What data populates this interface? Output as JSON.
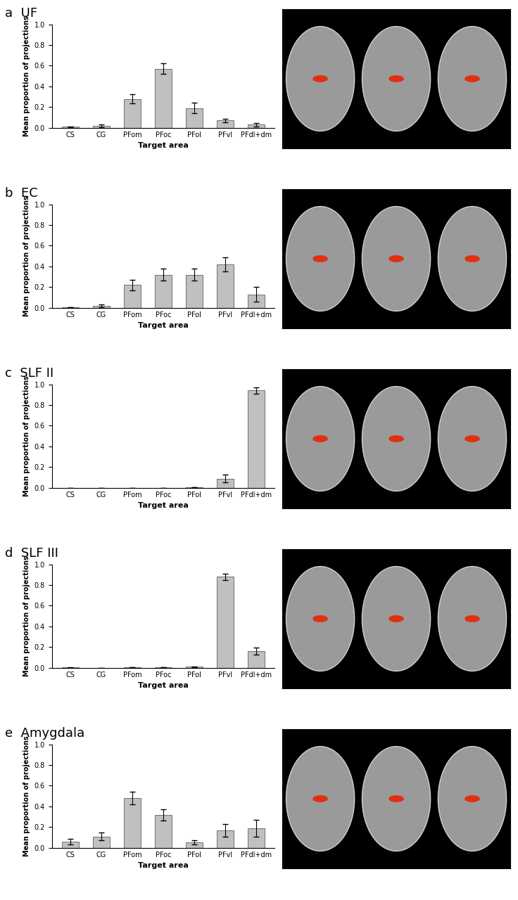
{
  "chart_data": [
    {
      "type": "bar",
      "title": "a  UF",
      "categories": [
        "CS",
        "CG",
        "PFom",
        "PFoc",
        "PFol",
        "PFvl",
        "PFdl+dm"
      ],
      "values": [
        0.01,
        0.02,
        0.28,
        0.57,
        0.19,
        0.07,
        0.03
      ],
      "errors": [
        0.005,
        0.015,
        0.045,
        0.05,
        0.05,
        0.02,
        0.015
      ],
      "x_label": "Target area",
      "y_label": "Mean proportion of projections",
      "color": "#c0c0c0",
      "ylim": [
        0.0,
        1.0
      ],
      "yticks": [
        0.0,
        0.2,
        0.4,
        0.6,
        0.8,
        1.0
      ]
    },
    {
      "type": "bar",
      "title": "b  EC",
      "categories": [
        "CS",
        "CG",
        "PFom",
        "PFoc",
        "PFol",
        "PFvl",
        "PFdl+dm"
      ],
      "values": [
        0.005,
        0.02,
        0.22,
        0.32,
        0.32,
        0.42,
        0.13
      ],
      "errors": [
        0.003,
        0.015,
        0.05,
        0.06,
        0.06,
        0.07,
        0.07
      ],
      "x_label": "Target area",
      "y_label": "Mean proportion of projections",
      "color": "#c0c0c0",
      "ylim": [
        0.0,
        1.0
      ],
      "yticks": [
        0.0,
        0.2,
        0.4,
        0.6,
        0.8,
        1.0
      ]
    },
    {
      "type": "bar",
      "title": "c  SLF II",
      "categories": [
        "CS",
        "CG",
        "PFom",
        "PFoc",
        "PFol",
        "PFvl",
        "PFdl+dm"
      ],
      "values": [
        0.0,
        0.0,
        0.0,
        0.0,
        0.005,
        0.09,
        0.94
      ],
      "errors": [
        0.0,
        0.0,
        0.0,
        0.0,
        0.003,
        0.035,
        0.03
      ],
      "x_label": "Target area",
      "y_label": "Mean proportion of projections",
      "color": "#c0c0c0",
      "ylim": [
        0.0,
        1.0
      ],
      "yticks": [
        0.0,
        0.2,
        0.4,
        0.6,
        0.8,
        1.0
      ]
    },
    {
      "type": "bar",
      "title": "d  SLF III",
      "categories": [
        "CS",
        "CG",
        "PFom",
        "PFoc",
        "PFol",
        "PFvl",
        "PFdl+dm"
      ],
      "values": [
        0.003,
        0.0,
        0.005,
        0.005,
        0.01,
        0.88,
        0.16
      ],
      "errors": [
        0.002,
        0.0,
        0.003,
        0.003,
        0.005,
        0.03,
        0.035
      ],
      "x_label": "Target area",
      "y_label": "Mean proportion of projections",
      "color": "#c0c0c0",
      "ylim": [
        0.0,
        1.0
      ],
      "yticks": [
        0.0,
        0.2,
        0.4,
        0.6,
        0.8,
        1.0
      ]
    },
    {
      "type": "bar",
      "title": "e  Amygdala",
      "categories": [
        "CS",
        "CG",
        "PFom",
        "PFoc",
        "PFol",
        "PFvl",
        "PFdl+dm"
      ],
      "values": [
        0.06,
        0.11,
        0.48,
        0.32,
        0.05,
        0.17,
        0.19
      ],
      "errors": [
        0.025,
        0.04,
        0.06,
        0.055,
        0.02,
        0.06,
        0.08
      ],
      "x_label": "Target area",
      "y_label": "Mean proportion of projections",
      "color": "#c0c0c0",
      "ylim": [
        0.0,
        1.0
      ],
      "yticks": [
        0.0,
        0.2,
        0.4,
        0.6,
        0.8,
        1.0
      ]
    }
  ]
}
